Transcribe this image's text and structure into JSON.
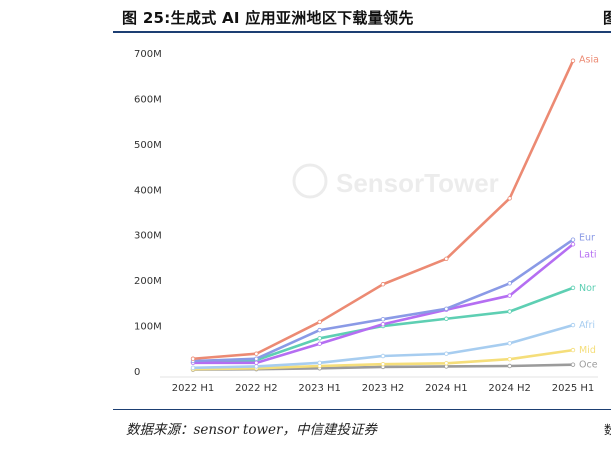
{
  "header": {
    "title": "图 25:生成式 AI 应用亚洲地区下载量领先",
    "title_right": "图"
  },
  "footer": {
    "source": "数据来源：sensor tower，中信建投证券",
    "source_right": "数"
  },
  "watermark": "SensorTower",
  "chart_data": {
    "type": "line",
    "title": "",
    "xlabel": "",
    "ylabel": "",
    "categories": [
      "2022 H1",
      "2022 H2",
      "2023 H1",
      "2023 H2",
      "2024 H1",
      "2024 H2",
      "2025 H1"
    ],
    "ylim": [
      0,
      700
    ],
    "yticks": [
      {
        "value": 0,
        "label": "0"
      },
      {
        "value": 100,
        "label": "100M"
      },
      {
        "value": 200,
        "label": "200M"
      },
      {
        "value": 300,
        "label": "300M"
      },
      {
        "value": 400,
        "label": "400M"
      },
      {
        "value": 500,
        "label": "500M"
      },
      {
        "value": 600,
        "label": "600M"
      },
      {
        "value": 700,
        "label": "700M"
      }
    ],
    "grid": false,
    "series": [
      {
        "name": "Asia",
        "label": "Asia",
        "color": "#ec8a73",
        "values": [
          27,
          38,
          108,
          191,
          247,
          380,
          683
        ]
      },
      {
        "name": "Europe",
        "label": "Eur",
        "color": "#8a9ae6",
        "values": [
          22,
          27,
          90,
          114,
          137,
          193,
          289
        ]
      },
      {
        "name": "Latin America",
        "label": "Lati",
        "color": "#b56ef2",
        "values": [
          18,
          18,
          60,
          103,
          135,
          166,
          279
        ]
      },
      {
        "name": "North America",
        "label": "Nor",
        "color": "#5ecfb3",
        "values": [
          19,
          24,
          72,
          99,
          115,
          131,
          183
        ]
      },
      {
        "name": "Africa",
        "label": "Afri",
        "color": "#a7cdf0",
        "values": [
          7,
          10,
          18,
          33,
          38,
          61,
          101
        ]
      },
      {
        "name": "Middle East",
        "label": "Mid",
        "color": "#f5de7a",
        "values": [
          4,
          6,
          11,
          15,
          17,
          26,
          46
        ]
      },
      {
        "name": "Oceania",
        "label": "Oce",
        "color": "#9b9b9b",
        "values": [
          3,
          4,
          6,
          9,
          10,
          11,
          14
        ]
      }
    ]
  }
}
